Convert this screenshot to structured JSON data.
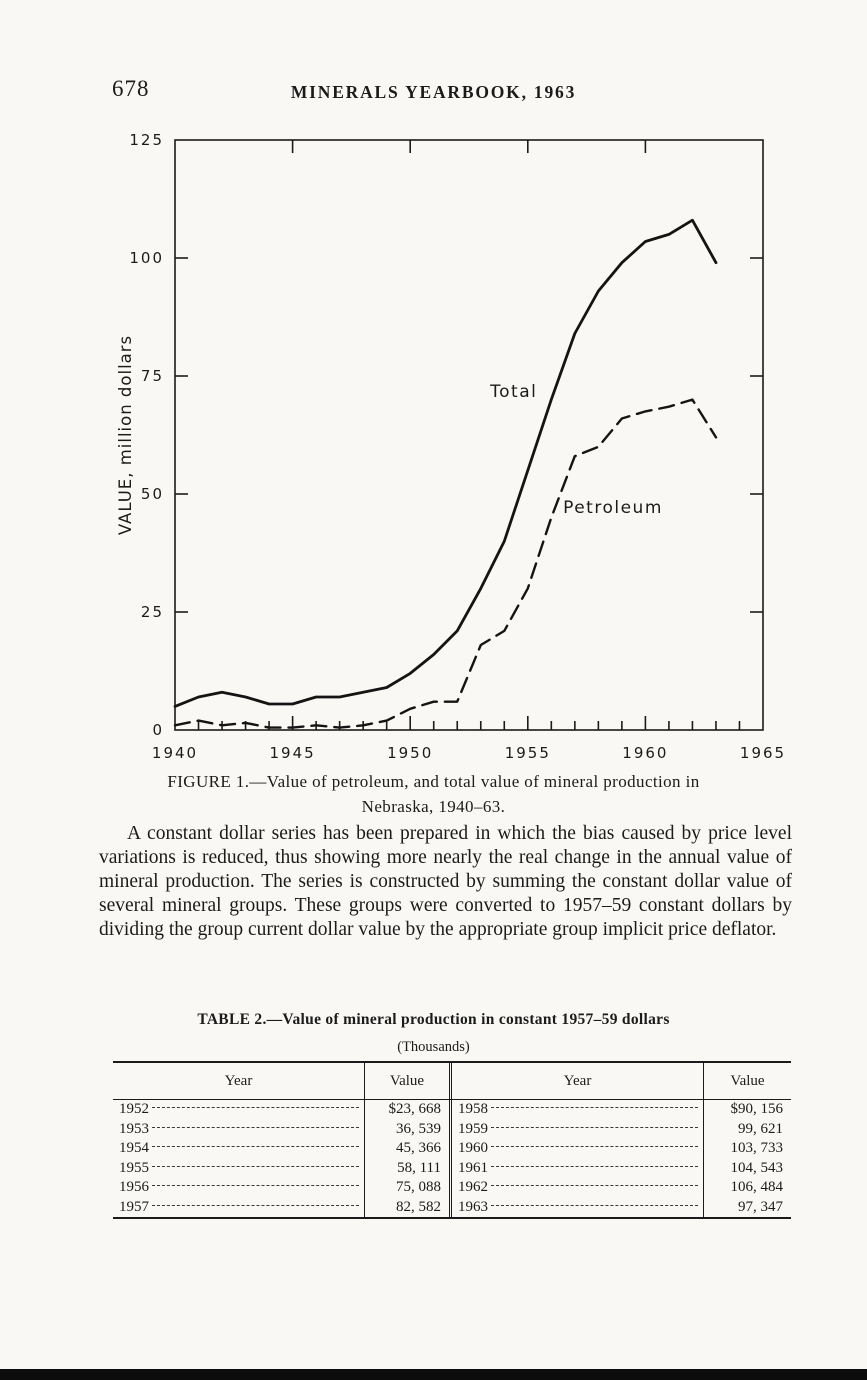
{
  "page": {
    "page_number": "678",
    "header_title": "MINERALS YEARBOOK, 1963"
  },
  "figure": {
    "caption_line1": "FIGURE 1.—Value of petroleum, and total value of mineral production in",
    "caption_line2": "Nebraska, 1940–63."
  },
  "chart_data": {
    "type": "line",
    "title": "Value of petroleum, and total value of mineral production in Nebraska, 1940-63",
    "xlabel": "",
    "ylabel": "VALUE, million dollars",
    "xlim": [
      1940,
      1965
    ],
    "ylim": [
      0,
      125
    ],
    "xticks": [
      1940,
      1945,
      1950,
      1955,
      1960,
      1965
    ],
    "yticks": [
      0,
      25,
      50,
      75,
      100,
      125
    ],
    "grid": false,
    "legend_position": "inline-labels",
    "x": [
      1940,
      1941,
      1942,
      1943,
      1944,
      1945,
      1946,
      1947,
      1948,
      1949,
      1950,
      1951,
      1952,
      1953,
      1954,
      1955,
      1956,
      1957,
      1958,
      1959,
      1960,
      1961,
      1962,
      1963
    ],
    "series": [
      {
        "name": "Total",
        "style": "solid",
        "values": [
          5,
          7,
          8,
          7,
          5.5,
          5.5,
          7,
          7,
          8,
          9,
          12,
          16,
          21,
          30,
          40,
          55,
          70,
          84,
          93,
          99,
          103.5,
          105,
          108,
          99
        ]
      },
      {
        "name": "Petroleum",
        "style": "dashed",
        "values": [
          1,
          2,
          1,
          1.5,
          0.5,
          0.5,
          1,
          0.5,
          1,
          2,
          4.5,
          6,
          6,
          18,
          21,
          30,
          45,
          58,
          60,
          66,
          67.5,
          68.5,
          70,
          62
        ]
      }
    ],
    "annotations": [
      {
        "text": "Total",
        "x": 1953.4,
        "y": 70.5
      },
      {
        "text": "Petroleum",
        "x": 1956.5,
        "y": 46
      }
    ]
  },
  "paragraph": {
    "text": "A constant dollar series has been prepared in which the bias caused by price level variations is reduced, thus showing more nearly the real change in the annual value of mineral production.  The series is constructed by summing the constant dollar value of several mineral groups.  These groups were converted to 1957–59 constant dollars by dividing the group current dollar value by the appropriate group implicit price deflator."
  },
  "table": {
    "title": "TABLE 2.—Value of mineral production in constant 1957–59 dollars",
    "subtitle": "(Thousands)",
    "col_headers": [
      "Year",
      "Value",
      "Year",
      "Value"
    ],
    "rows": [
      {
        "y1": "1952",
        "v1": "$23, 668",
        "y2": "1958",
        "v2": "$90, 156"
      },
      {
        "y1": "1953",
        "v1": "36, 539",
        "y2": "1959",
        "v2": "99, 621"
      },
      {
        "y1": "1954",
        "v1": "45, 366",
        "y2": "1960",
        "v2": "103, 733"
      },
      {
        "y1": "1955",
        "v1": "58, 111",
        "y2": "1961",
        "v2": "104, 543"
      },
      {
        "y1": "1956",
        "v1": "75, 088",
        "y2": "1962",
        "v2": "106, 484"
      },
      {
        "y1": "1957",
        "v1": "82, 582",
        "y2": "1963",
        "v2": "97, 347"
      }
    ]
  }
}
